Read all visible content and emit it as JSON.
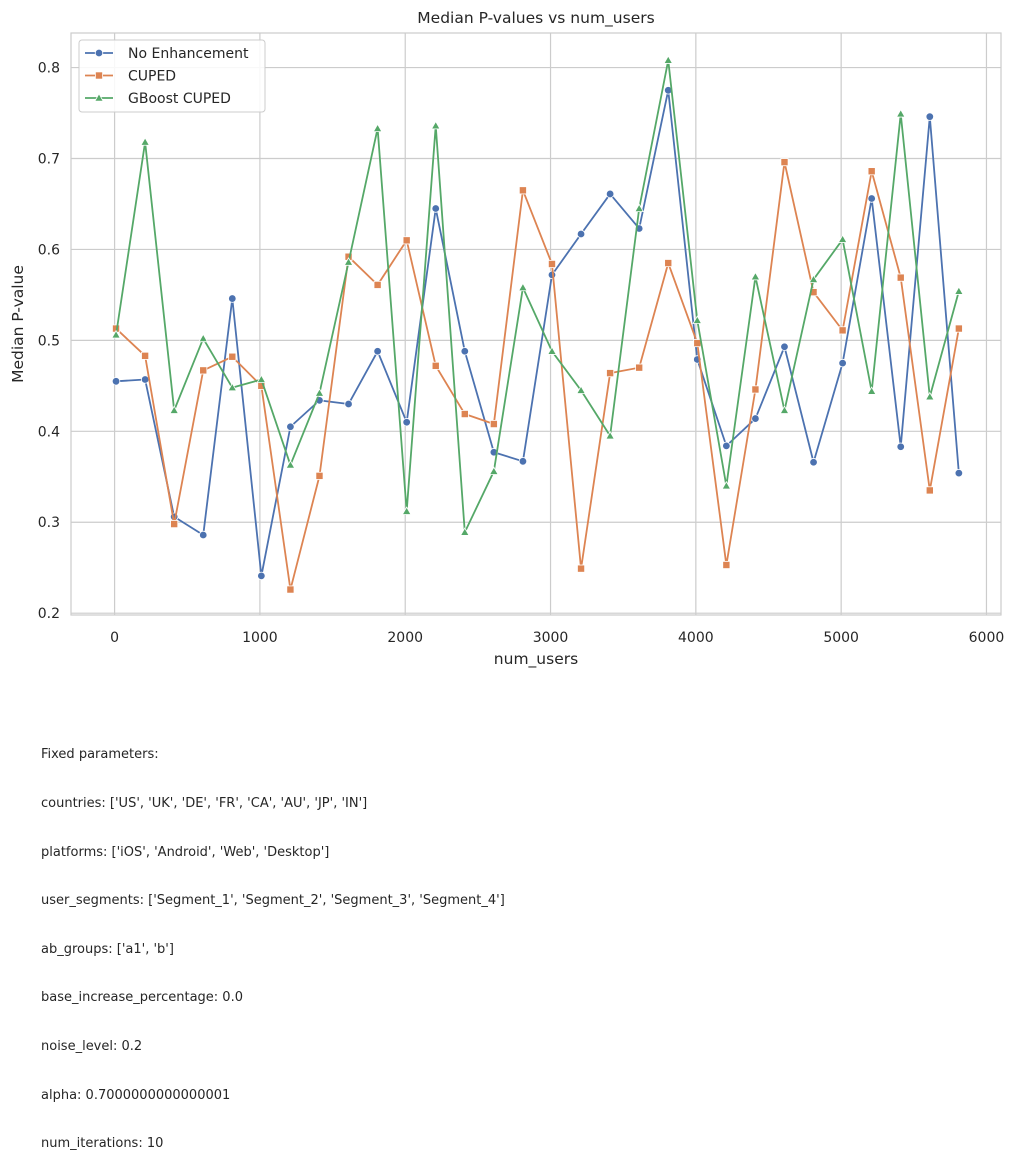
{
  "chart_data": {
    "type": "line",
    "title": "Median P-values vs num_users",
    "xlabel": "num_users",
    "ylabel": "Median P-value",
    "xlim": [
      -300,
      6100
    ],
    "ylim": [
      0.198,
      0.838
    ],
    "xticks": [
      0,
      1000,
      2000,
      3000,
      4000,
      5000,
      6000
    ],
    "xtick_labels": [
      "0",
      "1000",
      "2000",
      "3000",
      "4000",
      "5000",
      "6000"
    ],
    "yticks": [
      0.2,
      0.3,
      0.4,
      0.5,
      0.6,
      0.7,
      0.8
    ],
    "ytick_labels": [
      "0.2",
      "0.3",
      "0.4",
      "0.5",
      "0.6",
      "0.7",
      "0.8"
    ],
    "grid": true,
    "legend_position": "top-left",
    "x": [
      10,
      210,
      410,
      610,
      810,
      1010,
      1210,
      1410,
      1610,
      1810,
      2010,
      2210,
      2410,
      2610,
      2810,
      3010,
      3210,
      3410,
      3610,
      3810,
      4010,
      4210,
      4410,
      4610,
      4810,
      5010,
      5210,
      5410,
      5610,
      5810
    ],
    "series": [
      {
        "name": "No Enhancement",
        "color": "#4c72b0",
        "marker": "circle",
        "values": [
          0.455,
          0.457,
          0.306,
          0.286,
          0.546,
          0.241,
          0.405,
          0.434,
          0.43,
          0.488,
          0.41,
          0.645,
          0.488,
          0.377,
          0.367,
          0.572,
          0.617,
          0.661,
          0.623,
          0.775,
          0.479,
          0.384,
          0.414,
          0.493,
          0.366,
          0.475,
          0.656,
          0.383,
          0.746,
          0.354
        ]
      },
      {
        "name": "CUPED",
        "color": "#dd8452",
        "marker": "square",
        "values": [
          0.513,
          0.483,
          0.298,
          0.467,
          0.482,
          0.45,
          0.226,
          0.351,
          0.592,
          0.561,
          0.61,
          0.472,
          0.419,
          0.408,
          0.665,
          0.584,
          0.249,
          0.464,
          0.47,
          0.585,
          0.497,
          0.253,
          0.446,
          0.696,
          0.553,
          0.511,
          0.686,
          0.569,
          0.335,
          0.513
        ]
      },
      {
        "name": "GBoost CUPED",
        "color": "#55a868",
        "marker": "triangle",
        "values": [
          0.506,
          0.718,
          0.423,
          0.502,
          0.448,
          0.457,
          0.363,
          0.442,
          0.586,
          0.733,
          0.312,
          0.736,
          0.289,
          0.356,
          0.558,
          0.488,
          0.445,
          0.395,
          0.645,
          0.808,
          0.522,
          0.34,
          0.57,
          0.423,
          0.567,
          0.611,
          0.444,
          0.749,
          0.438,
          0.554
        ]
      }
    ]
  },
  "footnote": {
    "heading": "Fixed parameters:",
    "lines": [
      "countries: ['US', 'UK', 'DE', 'FR', 'CA', 'AU', 'JP', 'IN']",
      "platforms: ['iOS', 'Android', 'Web', 'Desktop']",
      "user_segments: ['Segment_1', 'Segment_2', 'Segment_3', 'Segment_4']",
      "ab_groups: ['a1', 'b']",
      "base_increase_percentage: 0.0",
      "noise_level: 0.2",
      "alpha: 0.7000000000000001",
      "num_iterations: 10"
    ]
  }
}
